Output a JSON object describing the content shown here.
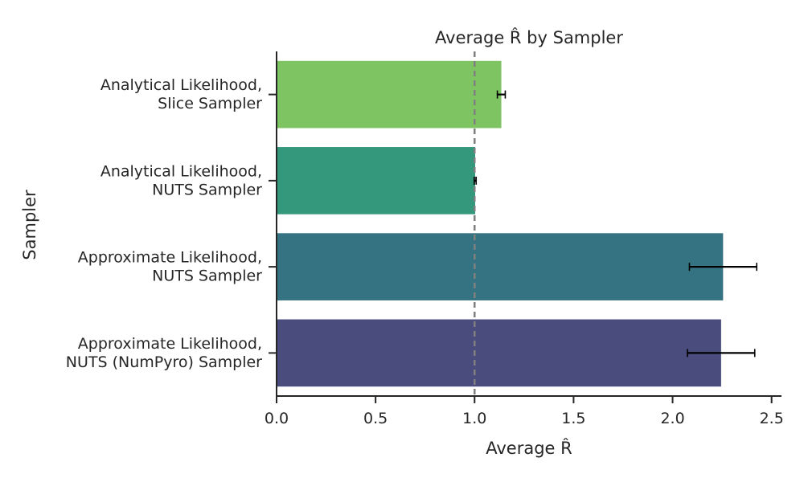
{
  "chart_data": {
    "type": "bar",
    "orientation": "horizontal",
    "title": "Average R̂ by Sampler",
    "xlabel": "Average R̂",
    "ylabel": "Sampler",
    "xlim": [
      0,
      2.55
    ],
    "xticks": [
      "0.0",
      "0.5",
      "1.0",
      "1.5",
      "2.0",
      "2.5"
    ],
    "reference_line": {
      "x": 1.0,
      "style": "dashed",
      "color": "#808080"
    },
    "categories": [
      [
        "Analytical Likelihood,",
        "Slice Sampler"
      ],
      [
        "Analytical Likelihood,",
        "NUTS Sampler"
      ],
      [
        "Approximate Likelihood,",
        "NUTS Sampler"
      ],
      [
        "Approximate Likelihood,",
        "NUTS (NumPyro) Sampler"
      ]
    ],
    "values": [
      1.135,
      1.003,
      2.255,
      2.245
    ],
    "error_low": [
      1.115,
      0.998,
      2.085,
      2.075
    ],
    "error_high": [
      1.155,
      1.008,
      2.425,
      2.415
    ],
    "colors": [
      "#7fc462",
      "#33987c",
      "#367382",
      "#4a4c7e"
    ],
    "grid": false
  }
}
